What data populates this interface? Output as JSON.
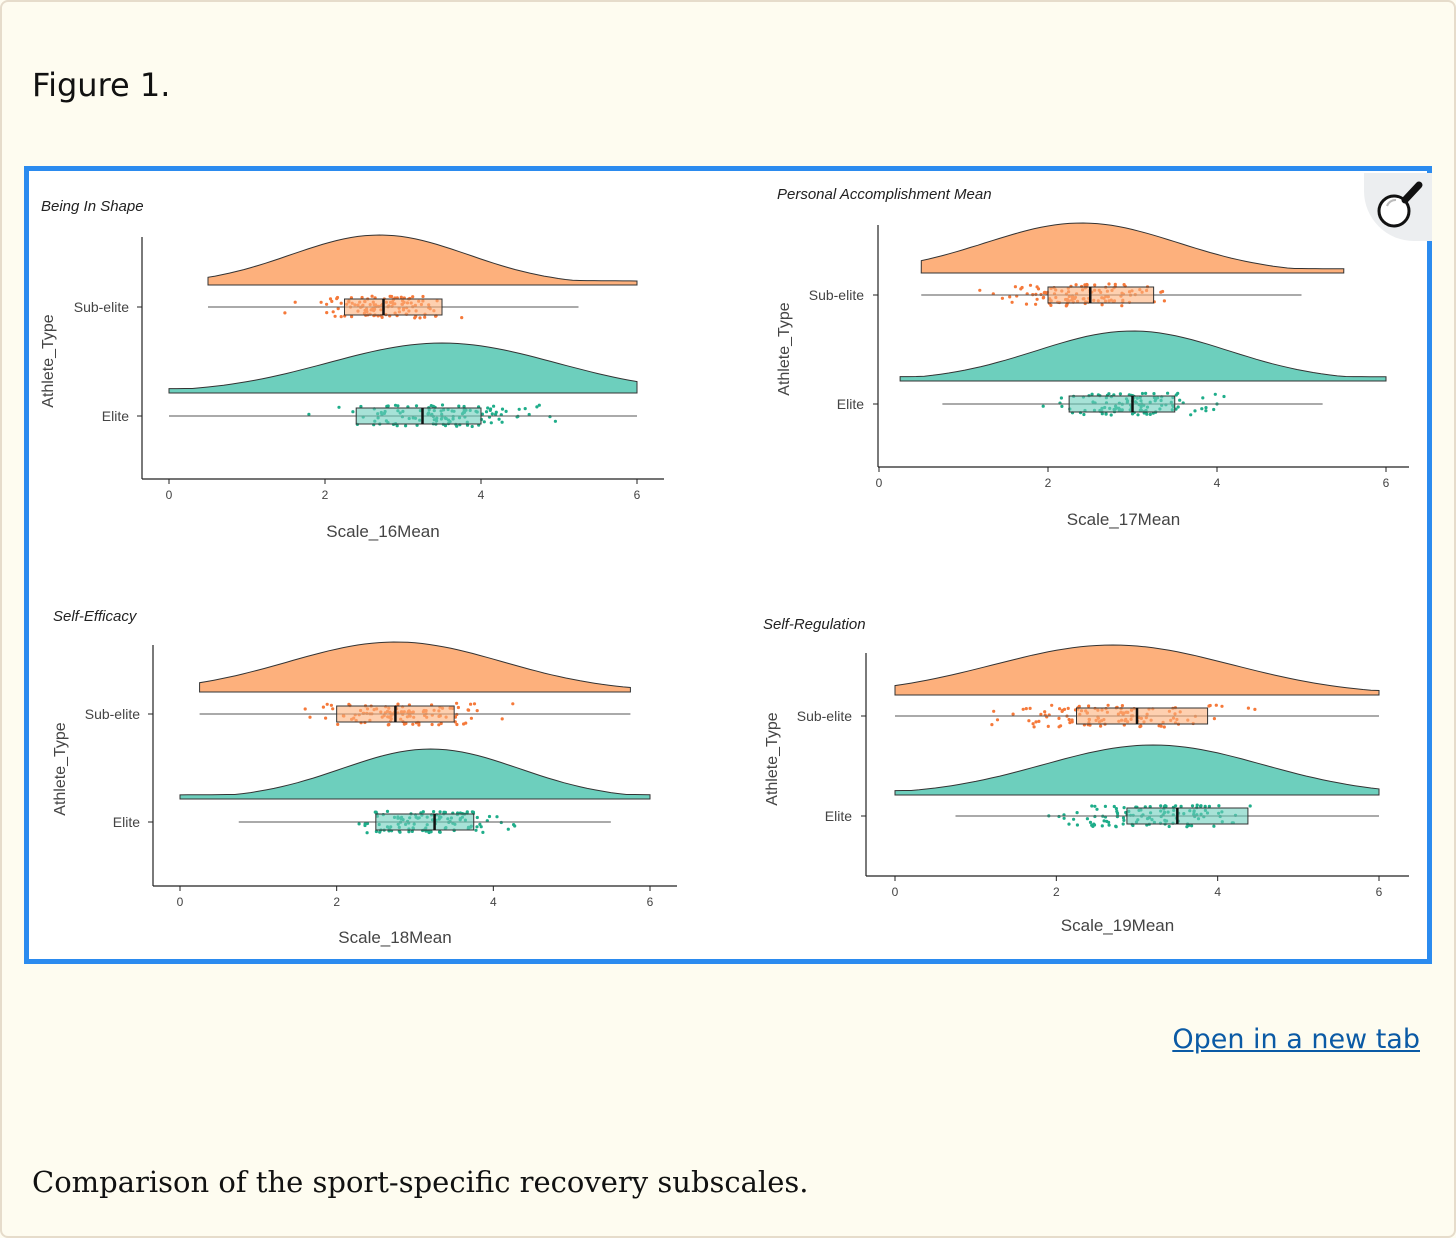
{
  "figure": {
    "title": "Figure 1."
  },
  "link": {
    "open_new_tab": "Open in a new tab"
  },
  "caption": "Comparison of the sport-specific recovery subscales.",
  "icons": {
    "zoom": "magnifier-icon"
  },
  "colors": {
    "accent_border": "#2b8bef",
    "subelite_fill": "#fdb07c",
    "subelite_points": "#f5793a",
    "elite_fill": "#6dcfbd",
    "elite_points": "#1fad8a",
    "link": "#0b5aa5"
  },
  "chart_data": [
    {
      "type": "raincloud",
      "title": "Being In Shape",
      "xlabel": "Scale_16Mean",
      "ylabel": "Athlete_Type",
      "xlim": [
        0,
        6
      ],
      "xticks": [
        "0",
        "2",
        "4",
        "6"
      ],
      "categories": [
        "Sub-elite",
        "Elite"
      ],
      "series": [
        {
          "name": "Sub-elite",
          "min": 0.5,
          "q1": 2.25,
          "median": 2.75,
          "q3": 3.5,
          "max": 5.25,
          "range": [
            0.5,
            6.0
          ],
          "peak": 2.7
        },
        {
          "name": "Elite",
          "min": 0.0,
          "q1": 2.4,
          "median": 3.25,
          "q3": 4.0,
          "max": 6.0,
          "range": [
            0.0,
            6.0
          ],
          "peak": 3.5
        }
      ]
    },
    {
      "type": "raincloud",
      "title": "Personal Accomplishment Mean",
      "xlabel": "Scale_17Mean",
      "ylabel": "Athlete_Type",
      "xlim": [
        0,
        6
      ],
      "xticks": [
        "0",
        "2",
        "4",
        "6"
      ],
      "categories": [
        "Sub-elite",
        "Elite"
      ],
      "series": [
        {
          "name": "Sub-elite",
          "min": 0.5,
          "q1": 2.0,
          "median": 2.5,
          "q3": 3.25,
          "max": 5.0,
          "range": [
            0.5,
            5.5
          ],
          "peak": 2.4
        },
        {
          "name": "Elite",
          "min": 0.75,
          "q1": 2.25,
          "median": 3.0,
          "q3": 3.5,
          "max": 5.25,
          "range": [
            0.25,
            6.0
          ],
          "peak": 3.0
        }
      ]
    },
    {
      "type": "raincloud",
      "title": "Self-Efficacy",
      "xlabel": "Scale_18Mean",
      "ylabel": "Athlete_Type",
      "xlim": [
        0,
        6
      ],
      "xticks": [
        "0",
        "2",
        "4",
        "6"
      ],
      "categories": [
        "Sub-elite",
        "Elite"
      ],
      "series": [
        {
          "name": "Sub-elite",
          "min": 0.25,
          "q1": 2.0,
          "median": 2.75,
          "q3": 3.5,
          "max": 5.75,
          "range": [
            0.25,
            5.75
          ],
          "peak": 2.75
        },
        {
          "name": "Elite",
          "min": 0.75,
          "q1": 2.5,
          "median": 3.25,
          "q3": 3.75,
          "max": 5.5,
          "range": [
            0.0,
            6.0
          ],
          "peak": 3.2
        }
      ]
    },
    {
      "type": "raincloud",
      "title": "Self-Regulation",
      "xlabel": "Scale_19Mean",
      "ylabel": "Athlete_Type",
      "xlim": [
        0,
        6
      ],
      "xticks": [
        "0",
        "2",
        "4",
        "6"
      ],
      "categories": [
        "Sub-elite",
        "Elite"
      ],
      "series": [
        {
          "name": "Sub-elite",
          "min": 0.0,
          "q1": 2.25,
          "median": 3.0,
          "q3": 3.875,
          "max": 6.0,
          "range": [
            0.0,
            6.0
          ],
          "peak": 2.7
        },
        {
          "name": "Elite",
          "min": 0.75,
          "q1": 2.875,
          "median": 3.5,
          "q3": 4.375,
          "max": 6.0,
          "range": [
            0.0,
            6.0
          ],
          "peak": 3.2
        }
      ]
    }
  ]
}
